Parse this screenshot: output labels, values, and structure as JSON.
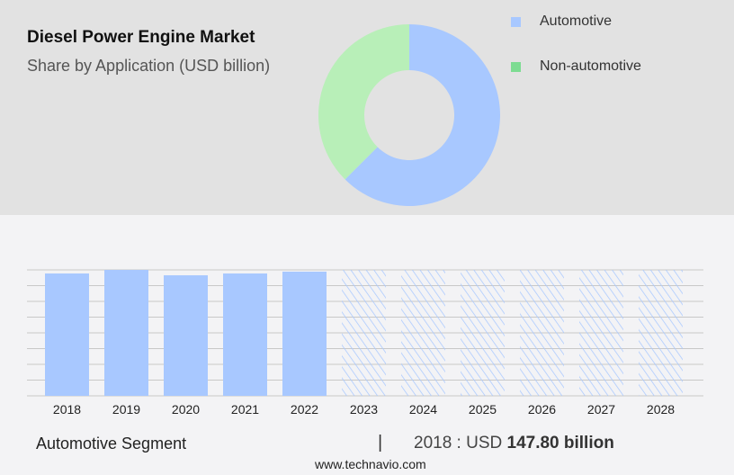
{
  "title": "Diesel Power Engine Market",
  "subtitle": "Share by Application (USD billion)",
  "colors": {
    "automotive": "#a8c8ff",
    "non_automotive": "#b8efb8",
    "legend_non_automotive": "#7ddc92",
    "grid": "#c8c8c8"
  },
  "chart_data": [
    {
      "type": "pie",
      "donut": true,
      "series": [
        {
          "name": "Automotive",
          "value": 62.5
        },
        {
          "name": "Non-automotive",
          "value": 37.5
        }
      ],
      "legend": "top-right"
    },
    {
      "type": "bar",
      "categories": [
        "2018",
        "2019",
        "2020",
        "2021",
        "2022",
        "2023",
        "2024",
        "2025",
        "2026",
        "2027",
        "2028"
      ],
      "values": [
        147.8,
        152.1,
        145.6,
        147.8,
        150.0,
        152.1,
        152.1,
        152.1,
        152.1,
        152.1,
        152.1
      ],
      "forecast_from": "2023",
      "ylim": [
        0,
        152.1
      ],
      "grid": true
    }
  ],
  "footer": {
    "segment": "Automotive Segment",
    "separator": "|",
    "value_prefix": "2018 : USD ",
    "value_bold": "147.80 billion",
    "site": "www.technavio.com"
  }
}
